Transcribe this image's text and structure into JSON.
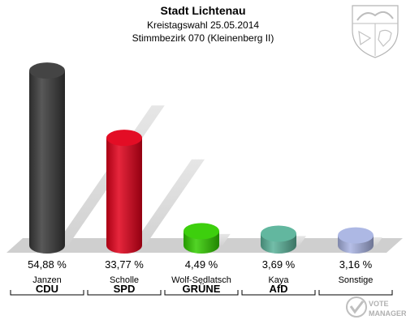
{
  "header": {
    "title": "Stadt Lichtenau",
    "subtitle": "Kreistagswahl 25.05.2014",
    "district": "Stimmbezirk 070 (Kleinenberg II)"
  },
  "chart_data": {
    "type": "bar",
    "categories": [
      "CDU",
      "SPD",
      "GRÜNE",
      "AfD",
      "Sonstige"
    ],
    "candidates": [
      "Janzen",
      "Scholle",
      "Wolf-Sedlatsch",
      "Kaya",
      "Sonstige"
    ],
    "values": [
      54.88,
      33.77,
      4.49,
      3.69,
      3.16
    ],
    "value_labels": [
      "54,88 %",
      "33,77 %",
      "4,49 %",
      "3,69 %",
      "3,16 %"
    ],
    "colors": [
      "#3a3a3a",
      "#e2001a",
      "#33cc00",
      "#5ab39a",
      "#a9b4e3"
    ],
    "ylim": [
      0,
      60
    ],
    "grid": false,
    "legend": "none"
  },
  "watermark": {
    "line1": "VOTE",
    "line2": "MANAGER"
  },
  "icons": {
    "coat_of_arms": "nrw-coat-of-arms-icon",
    "brand": "votemanager-logo-icon"
  }
}
